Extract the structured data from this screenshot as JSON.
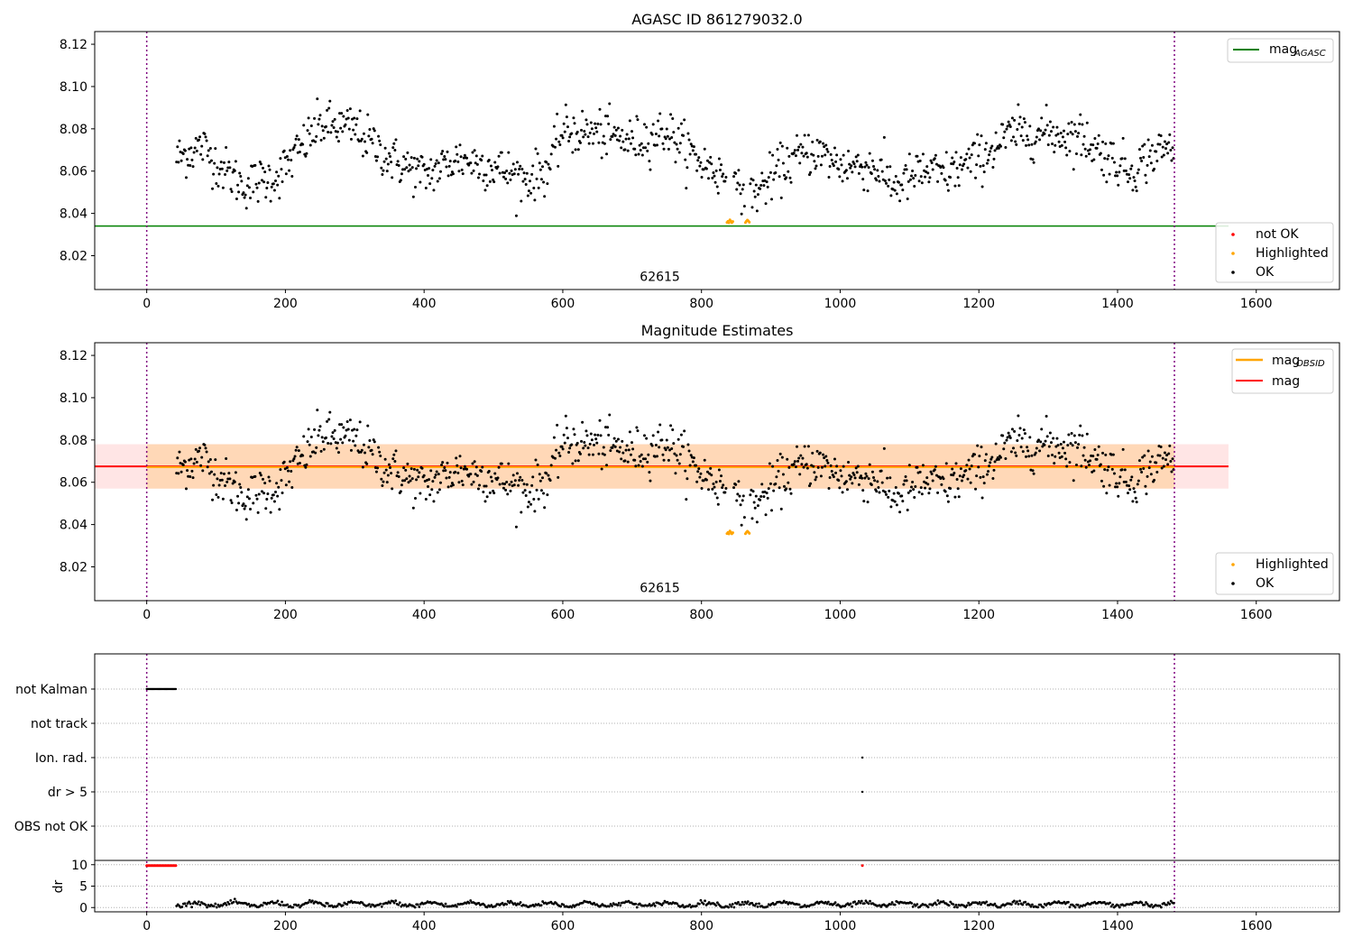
{
  "chart_data": [
    {
      "type": "scatter",
      "title": "AGASC ID 861279032.0",
      "xlim": [
        -75,
        1720
      ],
      "ylim": [
        8.004,
        8.126
      ],
      "xticks": [
        0,
        200,
        400,
        600,
        800,
        1000,
        1200,
        1400,
        1600
      ],
      "yticks": [
        8.02,
        8.04,
        8.06,
        8.08,
        8.1,
        8.12
      ],
      "ytick_labels": [
        "8.02",
        "8.04",
        "8.06",
        "8.08",
        "8.10",
        "8.12"
      ],
      "annotation": {
        "text": "62615",
        "x": 740,
        "y": 8.008
      },
      "vlines": [
        0,
        1482
      ],
      "reference_line": {
        "name": "mag",
        "sub": "AGASC",
        "value": 8.034,
        "color": "#008000"
      },
      "legend_lines": [
        {
          "name": "mag",
          "sub": "AGASC",
          "color": "#008000"
        }
      ],
      "legend_points": [
        {
          "name": "not OK",
          "color": "#ff0000"
        },
        {
          "name": "Highlighted",
          "color": "#ffa500"
        },
        {
          "name": "OK",
          "color": "#000000"
        }
      ]
    },
    {
      "type": "scatter",
      "title": "Magnitude Estimates",
      "xlim": [
        -75,
        1720
      ],
      "ylim": [
        8.004,
        8.126
      ],
      "xticks": [
        0,
        200,
        400,
        600,
        800,
        1000,
        1200,
        1400,
        1600
      ],
      "yticks": [
        8.02,
        8.04,
        8.06,
        8.08,
        8.1,
        8.12
      ],
      "ytick_labels": [
        "8.02",
        "8.04",
        "8.06",
        "8.08",
        "8.10",
        "8.12"
      ],
      "annotation": {
        "text": "62615",
        "x": 740,
        "y": 8.008
      },
      "vlines": [
        0,
        1482
      ],
      "mag_line": {
        "name": "mag",
        "value": 8.0675,
        "band": [
          8.057,
          8.078
        ],
        "color": "#ff0000"
      },
      "mag_obsid_line": {
        "name": "mag",
        "sub": "OBSID",
        "value": 8.0672,
        "x_range": [
          0,
          1482
        ],
        "band": [
          8.057,
          8.078
        ],
        "color": "#ffa500"
      },
      "legend_lines": [
        {
          "name": "mag",
          "sub": "OBSID",
          "color": "#ffa500"
        },
        {
          "name": "mag",
          "color": "#ff0000"
        }
      ],
      "legend_points": [
        {
          "name": "Highlighted",
          "color": "#ffa500"
        },
        {
          "name": "OK",
          "color": "#000000"
        }
      ]
    },
    {
      "type": "scatter",
      "xlim": [
        -75,
        1720
      ],
      "xticks": [
        0,
        200,
        400,
        600,
        800,
        1000,
        1200,
        1400,
        1600
      ],
      "flag_rows": [
        "not Kalman",
        "not track",
        "Ion. rad.",
        "dr > 5",
        "OBS not OK"
      ],
      "flags": [
        {
          "row": "not Kalman",
          "x_range": [
            0,
            43
          ]
        },
        {
          "row": "Ion. rad.",
          "x": [
            1032
          ]
        },
        {
          "row": "dr > 5",
          "x": [
            1032
          ]
        }
      ],
      "dr_ylabel": "dr",
      "dr_yticks": [
        0,
        5,
        10
      ],
      "dr_ylim": [
        -1,
        11
      ],
      "dr_red_points": {
        "x_range": [
          0,
          43
        ],
        "y": 9.8,
        "extra_x": [
          1032
        ]
      },
      "vlines": [
        0,
        1482
      ]
    }
  ]
}
